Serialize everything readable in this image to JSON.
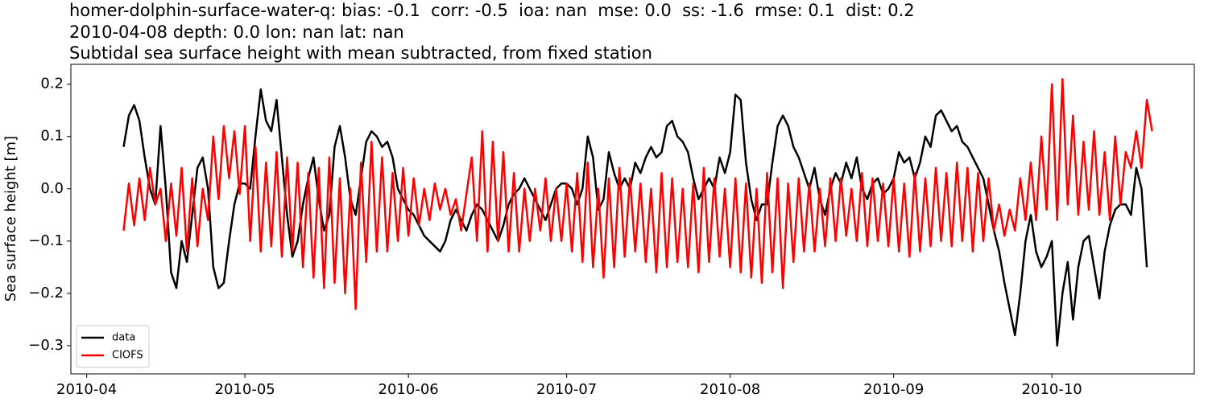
{
  "chart_data": {
    "type": "line",
    "title": "homer-dolphin-surface-water-q: bias: -0.1  corr: -0.5  ioa: nan  mse: 0.0  ss: -1.6  rmse: 0.1  dist: 0.2",
    "subtitle": "2010-04-08 depth: 0.0 lon: nan lat: nan",
    "subtitle2": "Subtidal sea surface height with mean subtracted, from fixed station",
    "y_label": "Sea surface height [m]",
    "legend": "lower left",
    "xlim": [
      "2010-03-29",
      "2010-10-28"
    ],
    "xticks": [
      {
        "value": "2010-04-01",
        "label": "2010-04"
      },
      {
        "value": "2010-05-01",
        "label": "2010-05"
      },
      {
        "value": "2010-06-01",
        "label": "2010-06"
      },
      {
        "value": "2010-07-01",
        "label": "2010-07"
      },
      {
        "value": "2010-08-01",
        "label": "2010-08"
      },
      {
        "value": "2010-09-01",
        "label": "2010-09"
      },
      {
        "value": "2010-10-01",
        "label": "2010-10"
      }
    ],
    "ylim": [
      -0.354,
      0.238
    ],
    "yticks": [
      {
        "value": -0.3,
        "label": "−0.3"
      },
      {
        "value": -0.2,
        "label": "−0.2"
      },
      {
        "value": -0.1,
        "label": "−0.1"
      },
      {
        "value": 0,
        "label": "0.0"
      },
      0.1,
      0.2
    ],
    "x": [
      "2010-04-08",
      "2010-04-09",
      "2010-04-10",
      "2010-04-11",
      "2010-04-12",
      "2010-04-13",
      "2010-04-14",
      "2010-04-15",
      "2010-04-16",
      "2010-04-17",
      "2010-04-18",
      "2010-04-19",
      "2010-04-20",
      "2010-04-21",
      "2010-04-22",
      "2010-04-23",
      "2010-04-24",
      "2010-04-25",
      "2010-04-26",
      "2010-04-27",
      "2010-04-28",
      "2010-04-29",
      "2010-04-30",
      "2010-05-01",
      "2010-05-02",
      "2010-05-03",
      "2010-05-04",
      "2010-05-05",
      "2010-05-06",
      "2010-05-07",
      "2010-05-08",
      "2010-05-09",
      "2010-05-10",
      "2010-05-11",
      "2010-05-12",
      "2010-05-13",
      "2010-05-14",
      "2010-05-15",
      "2010-05-16",
      "2010-05-17",
      "2010-05-18",
      "2010-05-19",
      "2010-05-20",
      "2010-05-21",
      "2010-05-22",
      "2010-05-23",
      "2010-05-24",
      "2010-05-25",
      "2010-05-26",
      "2010-05-27",
      "2010-05-28",
      "2010-05-29",
      "2010-05-30",
      "2010-05-31",
      "2010-06-01",
      "2010-06-02",
      "2010-06-03",
      "2010-06-04",
      "2010-06-05",
      "2010-06-06",
      "2010-06-07",
      "2010-06-08",
      "2010-06-09",
      "2010-06-10",
      "2010-06-11",
      "2010-06-12",
      "2010-06-13",
      "2010-06-14",
      "2010-06-15",
      "2010-06-16",
      "2010-06-17",
      "2010-06-18",
      "2010-06-19",
      "2010-06-20",
      "2010-06-21",
      "2010-06-22",
      "2010-06-23",
      "2010-06-24",
      "2010-06-25",
      "2010-06-26",
      "2010-06-27",
      "2010-06-28",
      "2010-06-29",
      "2010-06-30",
      "2010-07-01",
      "2010-07-02",
      "2010-07-03",
      "2010-07-04",
      "2010-07-05",
      "2010-07-06",
      "2010-07-07",
      "2010-07-08",
      "2010-07-09",
      "2010-07-10",
      "2010-07-11",
      "2010-07-12",
      "2010-07-13",
      "2010-07-14",
      "2010-07-15",
      "2010-07-16",
      "2010-07-17",
      "2010-07-18",
      "2010-07-19",
      "2010-07-20",
      "2010-07-21",
      "2010-07-22",
      "2010-07-23",
      "2010-07-24",
      "2010-07-25",
      "2010-07-26",
      "2010-07-27",
      "2010-07-28",
      "2010-07-29",
      "2010-07-30",
      "2010-07-31",
      "2010-08-01",
      "2010-08-02",
      "2010-08-03",
      "2010-08-04",
      "2010-08-05",
      "2010-08-06",
      "2010-08-07",
      "2010-08-08",
      "2010-08-09",
      "2010-08-10",
      "2010-08-11",
      "2010-08-12",
      "2010-08-13",
      "2010-08-14",
      "2010-08-15",
      "2010-08-16",
      "2010-08-17",
      "2010-08-18",
      "2010-08-19",
      "2010-08-20",
      "2010-08-21",
      "2010-08-22",
      "2010-08-23",
      "2010-08-24",
      "2010-08-25",
      "2010-08-26",
      "2010-08-27",
      "2010-08-28",
      "2010-08-29",
      "2010-08-30",
      "2010-08-31",
      "2010-09-01",
      "2010-09-02",
      "2010-09-03",
      "2010-09-04",
      "2010-09-05",
      "2010-09-06",
      "2010-09-07",
      "2010-09-08",
      "2010-09-09",
      "2010-09-10",
      "2010-09-11",
      "2010-09-12",
      "2010-09-13",
      "2010-09-14",
      "2010-09-15",
      "2010-09-16",
      "2010-09-17",
      "2010-09-18",
      "2010-09-19",
      "2010-09-20",
      "2010-09-21",
      "2010-09-22",
      "2010-09-23",
      "2010-09-24",
      "2010-09-25",
      "2010-09-26",
      "2010-09-27",
      "2010-09-28",
      "2010-09-29",
      "2010-09-30",
      "2010-10-01",
      "2010-10-02",
      "2010-10-03",
      "2010-10-04",
      "2010-10-05",
      "2010-10-06",
      "2010-10-07",
      "2010-10-08",
      "2010-10-09",
      "2010-10-10",
      "2010-10-11",
      "2010-10-12",
      "2010-10-13",
      "2010-10-14",
      "2010-10-15",
      "2010-10-16",
      "2010-10-17",
      "2010-10-18",
      "2010-10-19",
      "2010-10-20"
    ],
    "series": [
      {
        "name": "data",
        "color": "#000000",
        "values": [
          0.08,
          0.14,
          0.16,
          0.13,
          0.06,
          0.0,
          -0.03,
          0.12,
          0.0,
          -0.16,
          -0.19,
          -0.1,
          -0.14,
          -0.05,
          0.04,
          0.06,
          0.0,
          -0.15,
          -0.19,
          -0.18,
          -0.1,
          -0.03,
          0.01,
          0.01,
          0.0,
          0.1,
          0.19,
          0.13,
          0.11,
          0.17,
          0.06,
          -0.05,
          -0.13,
          -0.1,
          -0.03,
          0.02,
          0.06,
          -0.02,
          -0.08,
          -0.05,
          0.08,
          0.12,
          0.06,
          -0.02,
          -0.05,
          0.02,
          0.09,
          0.11,
          0.1,
          0.08,
          0.09,
          0.06,
          0.0,
          -0.02,
          -0.04,
          -0.05,
          -0.07,
          -0.09,
          -0.1,
          -0.11,
          -0.12,
          -0.1,
          -0.06,
          -0.04,
          -0.06,
          -0.08,
          -0.05,
          -0.03,
          -0.04,
          -0.06,
          -0.08,
          -0.1,
          -0.07,
          -0.03,
          -0.01,
          0.0,
          0.02,
          0.0,
          -0.02,
          -0.04,
          -0.06,
          -0.03,
          0.0,
          0.01,
          0.01,
          0.0,
          -0.03,
          0.0,
          0.1,
          0.06,
          -0.04,
          -0.02,
          0.07,
          0.03,
          0.0,
          0.02,
          0.0,
          0.05,
          0.03,
          0.06,
          0.08,
          0.06,
          0.07,
          0.12,
          0.13,
          0.1,
          0.09,
          0.07,
          0.02,
          -0.02,
          0.0,
          0.02,
          0.0,
          0.06,
          0.03,
          0.07,
          0.18,
          0.17,
          0.05,
          -0.02,
          -0.06,
          -0.03,
          -0.03,
          0.05,
          0.12,
          0.14,
          0.12,
          0.08,
          0.06,
          0.03,
          0.0,
          0.04,
          -0.02,
          -0.05,
          0.0,
          0.03,
          0.01,
          0.05,
          0.02,
          0.06,
          0.0,
          -0.02,
          0.01,
          0.02,
          -0.01,
          0.0,
          0.02,
          0.07,
          0.05,
          0.06,
          0.02,
          0.05,
          0.1,
          0.08,
          0.14,
          0.15,
          0.13,
          0.11,
          0.12,
          0.09,
          0.08,
          0.06,
          0.04,
          0.02,
          -0.03,
          -0.08,
          -0.12,
          -0.18,
          -0.23,
          -0.28,
          -0.2,
          -0.1,
          -0.05,
          -0.12,
          -0.15,
          -0.13,
          -0.1,
          -0.3,
          -0.2,
          -0.14,
          -0.25,
          -0.15,
          -0.1,
          -0.09,
          -0.15,
          -0.21,
          -0.12,
          -0.07,
          -0.04,
          -0.03,
          -0.03,
          -0.05,
          0.04,
          0.0,
          -0.15,
          null
        ]
      },
      {
        "name": "CIOFS",
        "color": "#ff0000",
        "values": [
          -0.08,
          0.01,
          -0.07,
          0.02,
          -0.06,
          0.04,
          -0.03,
          0.0,
          -0.1,
          0.01,
          -0.09,
          0.04,
          -0.12,
          0.02,
          -0.11,
          0.0,
          -0.06,
          0.1,
          -0.02,
          0.12,
          0.02,
          0.11,
          -0.01,
          0.12,
          -0.1,
          0.08,
          -0.12,
          0.05,
          -0.11,
          0.07,
          -0.13,
          0.06,
          -0.12,
          0.05,
          -0.15,
          0.03,
          -0.17,
          0.04,
          -0.19,
          0.06,
          -0.18,
          0.02,
          -0.2,
          0.0,
          -0.23,
          0.05,
          -0.14,
          0.09,
          -0.12,
          0.06,
          -0.12,
          0.03,
          -0.1,
          0.04,
          -0.09,
          0.02,
          -0.07,
          0.0,
          -0.06,
          0.01,
          -0.04,
          0.0,
          -0.05,
          -0.02,
          -0.08,
          -0.01,
          0.06,
          -0.1,
          0.11,
          -0.12,
          0.09,
          -0.1,
          0.07,
          -0.12,
          0.03,
          -0.12,
          0.0,
          -0.1,
          0.0,
          -0.08,
          0.02,
          -0.1,
          0.0,
          -0.1,
          0.01,
          -0.12,
          0.03,
          -0.14,
          0.05,
          -0.15,
          0.0,
          -0.17,
          0.02,
          -0.15,
          0.04,
          -0.13,
          0.02,
          -0.12,
          0.01,
          -0.14,
          0.0,
          -0.16,
          0.03,
          -0.15,
          0.02,
          -0.14,
          0.0,
          -0.15,
          0.01,
          -0.16,
          0.04,
          -0.14,
          0.02,
          -0.13,
          0.0,
          -0.15,
          0.02,
          -0.16,
          0.01,
          -0.17,
          0.0,
          -0.18,
          0.03,
          -0.16,
          0.02,
          -0.19,
          0.01,
          -0.14,
          0.02,
          -0.12,
          0.01,
          -0.12,
          0.0,
          -0.11,
          0.02,
          -0.1,
          0.02,
          -0.09,
          0.0,
          -0.1,
          0.03,
          -0.11,
          0.02,
          -0.1,
          0.01,
          -0.11,
          0.02,
          -0.12,
          0.01,
          -0.13,
          0.03,
          -0.12,
          0.02,
          -0.11,
          0.04,
          -0.1,
          0.03,
          -0.11,
          0.05,
          -0.1,
          0.04,
          -0.12,
          0.03,
          -0.1,
          0.02,
          -0.08,
          -0.03,
          -0.09,
          -0.04,
          -0.08,
          0.02,
          -0.06,
          0.05,
          -0.06,
          0.1,
          -0.04,
          0.2,
          -0.06,
          0.21,
          -0.03,
          0.14,
          -0.05,
          0.09,
          -0.04,
          0.11,
          -0.05,
          0.07,
          -0.06,
          0.1,
          -0.03,
          0.07,
          0.04,
          0.11,
          0.04,
          0.17,
          0.11
        ]
      }
    ]
  }
}
